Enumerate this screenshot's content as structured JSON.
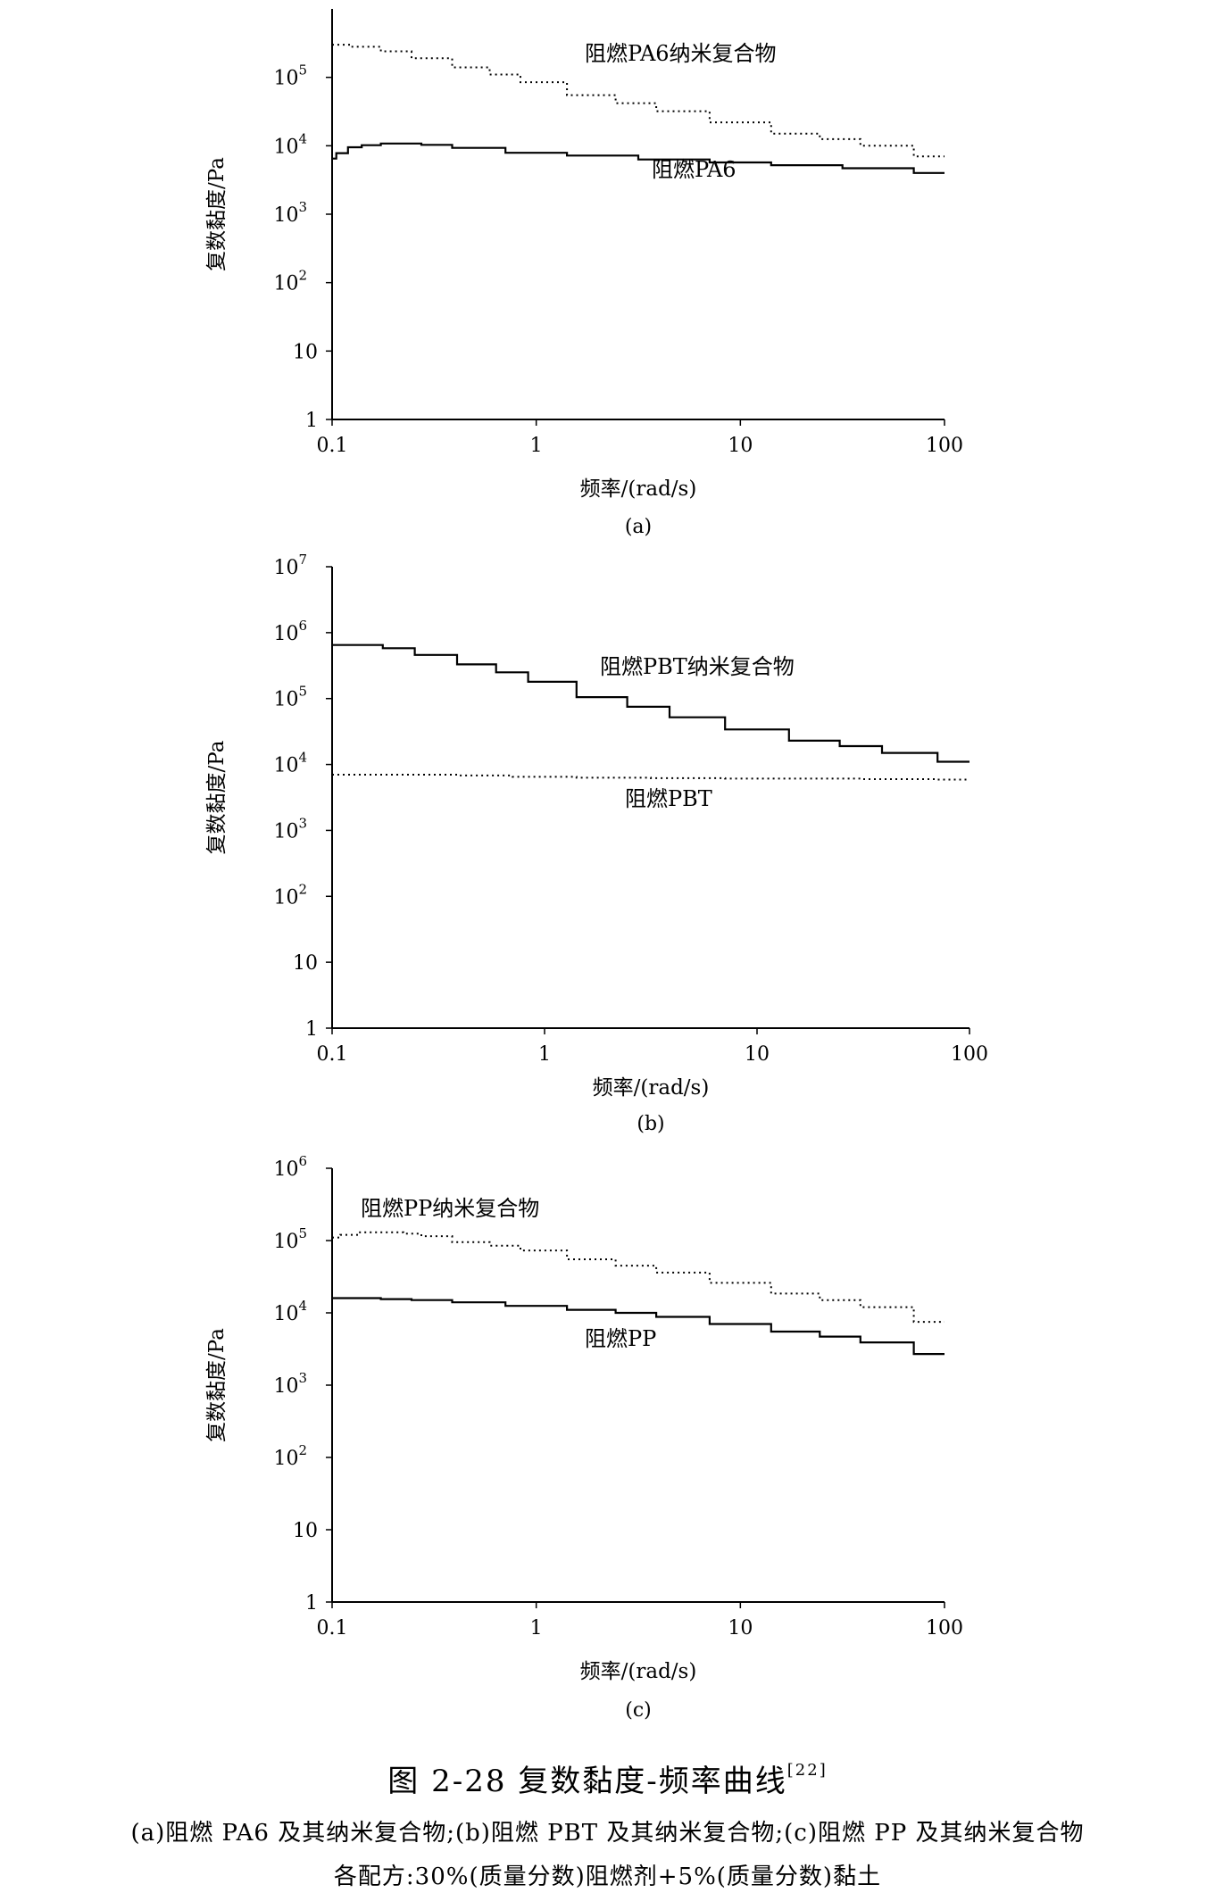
{
  "chart_data": [
    {
      "type": "line",
      "panel_label": "(a)",
      "xlabel": "频率/(rad/s)",
      "ylabel": "复数黏度/Pa",
      "x_scale": "log",
      "y_scale": "log",
      "xlim": [
        0.1,
        100
      ],
      "ylim": [
        1,
        1000000
      ],
      "x_ticks": [
        "0.1",
        "1",
        "10",
        "100"
      ],
      "y_ticks": [
        {
          "base": "1",
          "exp": ""
        },
        {
          "base": "10",
          "exp": ""
        },
        {
          "base": "10",
          "exp": "2"
        },
        {
          "base": "10",
          "exp": "3"
        },
        {
          "base": "10",
          "exp": "4"
        },
        {
          "base": "10",
          "exp": "5"
        }
      ],
      "grid": false,
      "series": [
        {
          "name": "阻燃PA6纳米复合物",
          "style": "dotted",
          "x": [
            0.1,
            0.15,
            0.2,
            0.3,
            0.5,
            0.7,
            1,
            2,
            3,
            5,
            10,
            20,
            30,
            50,
            100
          ],
          "y": [
            300000,
            280000,
            240000,
            190000,
            140000,
            110000,
            85000,
            55000,
            42000,
            32000,
            22000,
            15000,
            12500,
            10000,
            7000
          ]
        },
        {
          "name": "阻燃PA6",
          "style": "solid",
          "x": [
            0.1,
            0.11,
            0.13,
            0.15,
            0.2,
            0.25,
            0.3,
            0.5,
            1,
            2,
            5,
            10,
            20,
            50,
            100
          ],
          "y": [
            6500,
            7800,
            9500,
            10200,
            10800,
            10800,
            10300,
            9300,
            7900,
            7200,
            6300,
            5700,
            5200,
            4700,
            4000
          ]
        }
      ]
    },
    {
      "type": "line",
      "panel_label": "(b)",
      "xlabel": "频率/(rad/s)",
      "ylabel": "复数黏度/Pa",
      "x_scale": "log",
      "y_scale": "log",
      "xlim": [
        0.1,
        100
      ],
      "ylim": [
        1,
        10000000
      ],
      "x_ticks": [
        "0.1",
        "1",
        "10",
        "100"
      ],
      "y_ticks": [
        {
          "base": "1",
          "exp": ""
        },
        {
          "base": "10",
          "exp": ""
        },
        {
          "base": "10",
          "exp": "2"
        },
        {
          "base": "10",
          "exp": "3"
        },
        {
          "base": "10",
          "exp": "4"
        },
        {
          "base": "10",
          "exp": "5"
        },
        {
          "base": "10",
          "exp": "6"
        },
        {
          "base": "10",
          "exp": "7"
        }
      ],
      "grid": false,
      "series": [
        {
          "name": "阻燃PBT纳米复合物",
          "style": "solid",
          "x": [
            0.1,
            0.15,
            0.2,
            0.3,
            0.5,
            0.7,
            1,
            2,
            3,
            5,
            10,
            20,
            30,
            50,
            100
          ],
          "y": [
            650000,
            650000,
            580000,
            460000,
            330000,
            250000,
            180000,
            105000,
            75000,
            52000,
            34000,
            23000,
            19000,
            15000,
            11000
          ]
        },
        {
          "name": "阻燃PBT",
          "style": "dotted",
          "x": [
            0.1,
            0.2,
            0.3,
            0.5,
            1,
            2,
            5,
            10,
            20,
            50,
            100
          ],
          "y": [
            7000,
            7000,
            7000,
            6800,
            6500,
            6300,
            6200,
            6100,
            6100,
            6000,
            5900
          ]
        }
      ]
    },
    {
      "type": "line",
      "panel_label": "(c)",
      "xlabel": "频率/(rad/s)",
      "ylabel": "复数黏度/Pa",
      "x_scale": "log",
      "y_scale": "log",
      "xlim": [
        0.1,
        100
      ],
      "ylim": [
        1,
        1000000
      ],
      "x_ticks": [
        "0.1",
        "1",
        "10",
        "100"
      ],
      "y_ticks": [
        {
          "base": "1",
          "exp": ""
        },
        {
          "base": "10",
          "exp": ""
        },
        {
          "base": "10",
          "exp": "2"
        },
        {
          "base": "10",
          "exp": "3"
        },
        {
          "base": "10",
          "exp": "4"
        },
        {
          "base": "10",
          "exp": "5"
        },
        {
          "base": "10",
          "exp": "6"
        }
      ],
      "grid": false,
      "series": [
        {
          "name": "阻燃PP纳米复合物",
          "style": "dotted",
          "x": [
            0.1,
            0.12,
            0.15,
            0.2,
            0.25,
            0.3,
            0.5,
            0.7,
            1,
            2,
            3,
            5,
            10,
            20,
            30,
            50,
            100
          ],
          "y": [
            110000,
            120000,
            130000,
            130000,
            125000,
            115000,
            95000,
            85000,
            73000,
            55000,
            45000,
            36000,
            26000,
            18500,
            15000,
            12000,
            7500
          ]
        },
        {
          "name": "阻燃PP",
          "style": "solid",
          "x": [
            0.1,
            0.15,
            0.2,
            0.3,
            0.5,
            1,
            2,
            3,
            5,
            10,
            20,
            30,
            50,
            100
          ],
          "y": [
            16000,
            16000,
            15500,
            15000,
            14000,
            12500,
            11000,
            10000,
            8800,
            7000,
            5500,
            4700,
            3900,
            2700
          ]
        }
      ]
    }
  ],
  "figure": {
    "title_main": "图 2-28   复数黏度-频率曲线",
    "title_ref": "[22]",
    "caption_line1": "(a)阻燃 PA6 及其纳米复合物;(b)阻燃 PBT 及其纳米复合物;(c)阻燃 PP 及其纳米复合物",
    "caption_line2": "各配方:30%(质量分数)阻燃剂+5%(质量分数)黏土"
  }
}
